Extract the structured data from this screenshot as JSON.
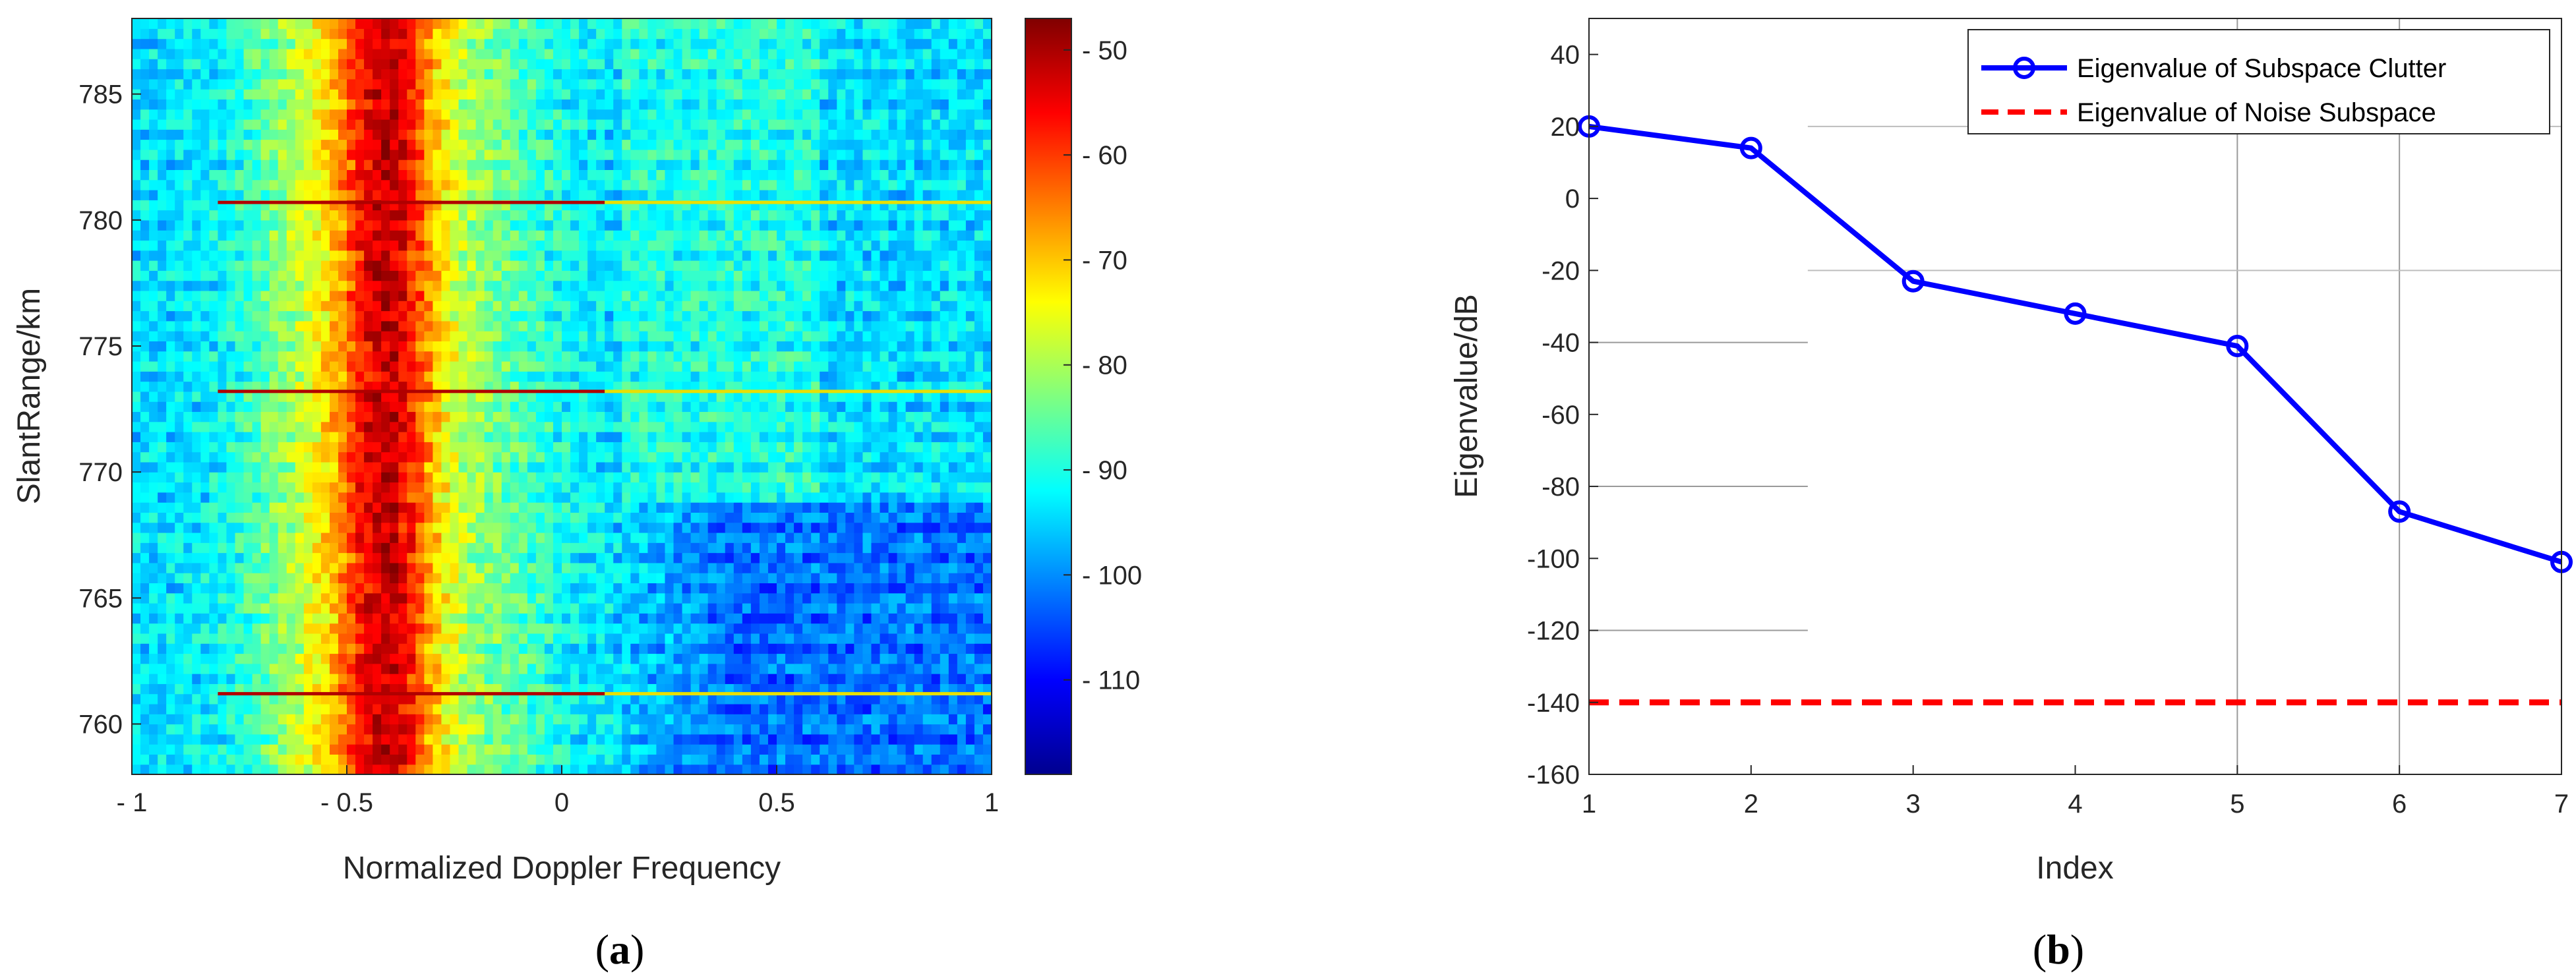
{
  "chart_data": [
    {
      "type": "heatmap",
      "caption_open": "(",
      "caption_letter": "a",
      "caption_close": ")",
      "title": "",
      "xlabel": "Normalized Doppler Frequency",
      "ylabel": "SlantRange/km",
      "xlim": [
        -1,
        1
      ],
      "ylim": [
        758,
        788
      ],
      "xticks": [
        -1,
        -0.5,
        0,
        0.5,
        1
      ],
      "xtick_labels": [
        "- 1",
        "- 0.5",
        "0",
        "0.5",
        "1"
      ],
      "yticks": [
        760,
        765,
        770,
        775,
        780,
        785
      ],
      "ytick_labels": [
        "760",
        "765",
        "770",
        "775",
        "780",
        "785"
      ],
      "colorbar": {
        "range": [
          -119,
          -47
        ],
        "ticks": [
          -50,
          -60,
          -70,
          -80,
          -90,
          -100,
          -110
        ],
        "tick_labels": [
          "- 50",
          "- 60",
          "- 70",
          "- 80",
          "- 90",
          "- 100",
          "- 110"
        ],
        "colormap": "jet"
      },
      "clutter_ridge_center": -0.41,
      "peak_dB": -48,
      "floor_dB": -93,
      "strong_range_lines_km": [
        761.2,
        773.2,
        780.7
      ]
    },
    {
      "type": "line",
      "caption_open": "(",
      "caption_letter": "b",
      "caption_close": ")",
      "title": "",
      "xlabel": "Index",
      "ylabel": "Eigenvalue/dB",
      "xlim": [
        1,
        7
      ],
      "ylim": [
        -160,
        50
      ],
      "xticks": [
        1,
        2,
        3,
        4,
        5,
        6,
        7
      ],
      "yticks": [
        -160,
        -140,
        -120,
        -100,
        -80,
        -60,
        -40,
        -20,
        0,
        20,
        40
      ],
      "xtick_labels": [
        "1",
        "2",
        "3",
        "4",
        "5",
        "6",
        "7"
      ],
      "ytick_labels": [
        "-160",
        "-140",
        "-120",
        "-100",
        "-80",
        "-60",
        "-40",
        "-20",
        "0",
        "20",
        "40"
      ],
      "x": [
        1,
        2,
        3,
        4,
        5,
        6,
        7
      ],
      "series": [
        {
          "name": "Eigenvalue of Subspace Clutter",
          "values": [
            20,
            14,
            -23,
            -32,
            -41,
            -87,
            -101
          ],
          "color": "#0000ff",
          "style": "solid-circle"
        },
        {
          "name": "Eigenvalue of Noise Subspace",
          "values": [
            -140,
            -140,
            -140,
            -140,
            -140,
            -140,
            -140
          ],
          "color": "#ff0000",
          "style": "dashed"
        }
      ],
      "legend_position": "top-right"
    }
  ]
}
